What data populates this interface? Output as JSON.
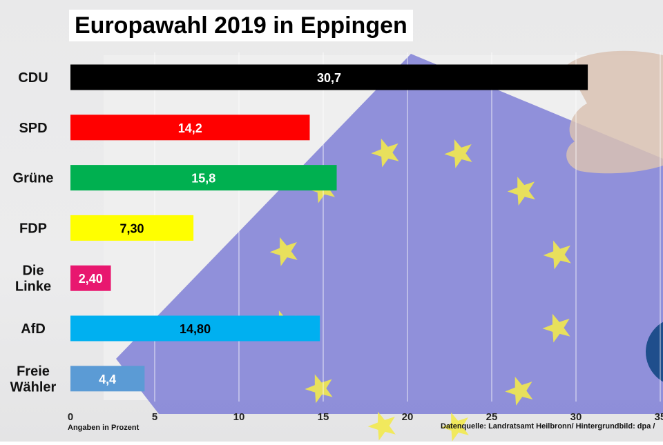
{
  "title": "Europawahl 2019 in Eppingen",
  "footer": {
    "xlabel": "Angaben in Prozent",
    "source": "Datenquelle: Landratsamt Heilbronn/ Hintergrundbild: dpa /"
  },
  "chart_data": {
    "type": "bar",
    "orientation": "horizontal",
    "title": "Europawahl 2019 in Eppingen",
    "xlabel": "Angaben in Prozent",
    "ylabel": "",
    "xlim": [
      0,
      35
    ],
    "xticks": [
      0,
      5,
      10,
      15,
      20,
      25,
      30,
      35
    ],
    "grid": true,
    "categories": [
      "CDU",
      "SPD",
      "Grüne",
      "FDP",
      "Die Linke",
      "AfD",
      "Freie Wähler"
    ],
    "category_lines": [
      [
        "CDU"
      ],
      [
        "SPD"
      ],
      [
        "Grüne"
      ],
      [
        "FDP"
      ],
      [
        "Die",
        "Linke"
      ],
      [
        "AfD"
      ],
      [
        "Freie",
        "Wähler"
      ]
    ],
    "values": [
      30.7,
      14.2,
      15.8,
      7.3,
      2.4,
      14.8,
      4.4
    ],
    "value_labels": [
      "30,7",
      "14,2",
      "15,8",
      "7,30",
      "2,40",
      "14,80",
      "4,4"
    ],
    "colors": [
      "#000000",
      "#ff0000",
      "#00b050",
      "#ffff00",
      "#e8176f",
      "#00b0f0",
      "#5b9bd5"
    ],
    "label_colors": [
      "#ffffff",
      "#ffffff",
      "#ffffff",
      "#000000",
      "#ffffff",
      "#000000",
      "#ffffff"
    ]
  }
}
